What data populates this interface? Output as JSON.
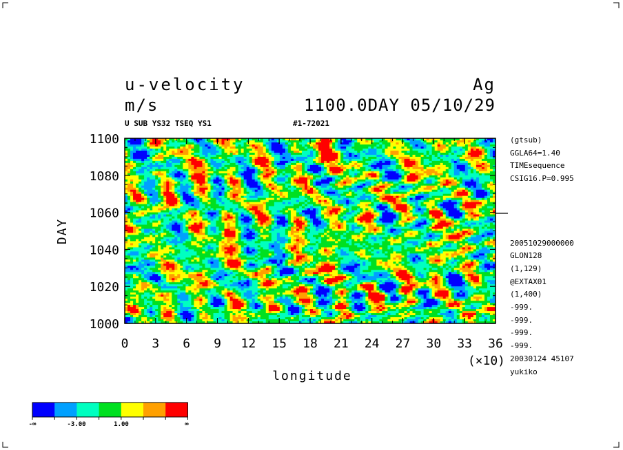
{
  "header": {
    "variable": "u-velocity",
    "dataset": "Ag",
    "units": "m/s",
    "time_stamp": "1100.0DAY 05/10/29",
    "subtitle_left": "U SUB YS32 TSEQ YS1",
    "subtitle_right": "#1-72021"
  },
  "side_info": {
    "top": [
      "(gtsub)",
      "GGLA64=1.40",
      "TIMEsequence",
      "CSIG16.P=0.995"
    ],
    "bottom": [
      "20051029000000",
      "GLON128",
      "(1,129)",
      "@EXTAX01",
      "(1,400)",
      "-999.",
      "-999.",
      "-999.",
      "-999.",
      "20030124  45107",
      "yukiko"
    ]
  },
  "chart_data": {
    "type": "heatmap",
    "xlabel": "longitude",
    "ylabel": "DAY",
    "x_multiplier": "(×10)",
    "xlim": [
      0,
      36
    ],
    "ylim": [
      1000,
      1100
    ],
    "x_ticks": [
      "0",
      "3",
      "6",
      "9",
      "12",
      "15",
      "18",
      "21",
      "24",
      "27",
      "30",
      "33",
      "36"
    ],
    "y_ticks": [
      "1000",
      "1020",
      "1040",
      "1060",
      "1080",
      "1100"
    ],
    "color_levels": [
      "#0000ff",
      "#00a0ff",
      "#00ffc0",
      "#00e020",
      "#ffff00",
      "#ffa000",
      "#ff0000"
    ],
    "colorbar_labels": [
      "-∞",
      "-3.00",
      "1.00",
      "∞"
    ]
  }
}
